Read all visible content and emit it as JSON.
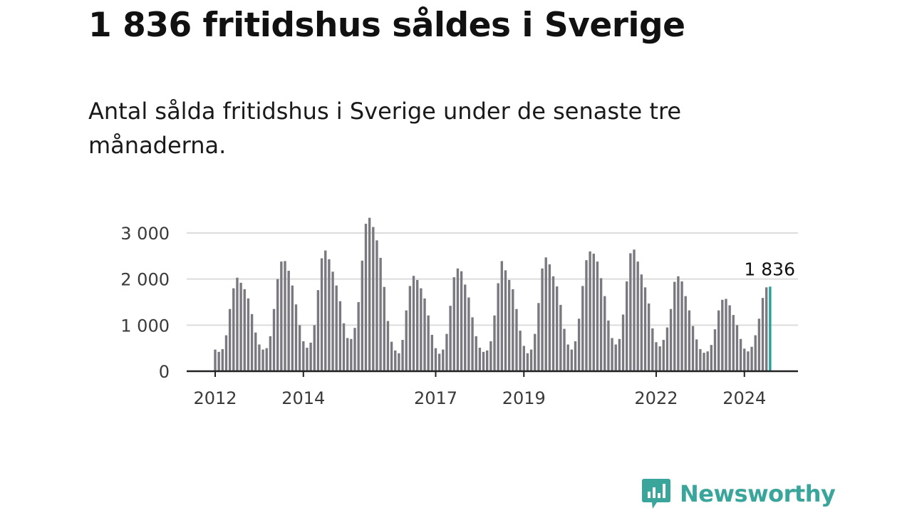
{
  "title": "1 836 fritidshus såldes i Sverige",
  "subtitle": "Antal sålda fritidshus i Sverige under de senaste tre månaderna.",
  "brand": {
    "name": "Newsworthy",
    "icon": "newsworthy-logo-icon",
    "color": "#3aa59a"
  },
  "colors": {
    "bar": "#7a7980",
    "highlight": "#21a39b",
    "grid": "#dcdcdc",
    "axis": "#222222"
  },
  "chart_data": {
    "type": "bar",
    "title": "",
    "xlabel": "",
    "ylabel": "",
    "ylim": [
      0,
      3300
    ],
    "y_ticks": [
      0,
      1000,
      2000,
      3000
    ],
    "y_tick_labels": [
      "0",
      "1 000",
      "2 000",
      "3 000"
    ],
    "x_ticks": [
      "2012",
      "2014",
      "2017",
      "2019",
      "2022",
      "2024"
    ],
    "x_start": "2012-01",
    "x_end": "2024-07",
    "grid": true,
    "highlight_last": true,
    "last_label": "1 836",
    "values": [
      470,
      420,
      480,
      780,
      1350,
      1800,
      2030,
      1920,
      1780,
      1580,
      1240,
      840,
      580,
      470,
      500,
      760,
      1350,
      2000,
      2380,
      2390,
      2180,
      1860,
      1450,
      1000,
      650,
      510,
      620,
      1000,
      1760,
      2450,
      2620,
      2430,
      2160,
      1860,
      1520,
      1040,
      720,
      700,
      940,
      1500,
      2400,
      3200,
      3330,
      3130,
      2840,
      2460,
      1830,
      1090,
      640,
      450,
      390,
      680,
      1320,
      1850,
      2070,
      1980,
      1800,
      1580,
      1210,
      790,
      500,
      380,
      470,
      810,
      1420,
      2040,
      2230,
      2170,
      1880,
      1600,
      1170,
      760,
      510,
      420,
      450,
      650,
      1210,
      1910,
      2390,
      2190,
      1980,
      1780,
      1350,
      880,
      550,
      390,
      470,
      810,
      1480,
      2230,
      2470,
      2320,
      2060,
      1840,
      1440,
      920,
      580,
      470,
      650,
      1140,
      1850,
      2410,
      2600,
      2550,
      2380,
      2020,
      1630,
      1100,
      720,
      580,
      700,
      1230,
      1950,
      2560,
      2640,
      2380,
      2100,
      1820,
      1470,
      930,
      630,
      540,
      680,
      950,
      1350,
      1940,
      2060,
      1950,
      1630,
      1320,
      980,
      690,
      480,
      400,
      430,
      570,
      910,
      1320,
      1550,
      1570,
      1430,
      1220,
      1000,
      700,
      490,
      430,
      530,
      780,
      1140,
      1590,
      1820,
      1836
    ]
  }
}
